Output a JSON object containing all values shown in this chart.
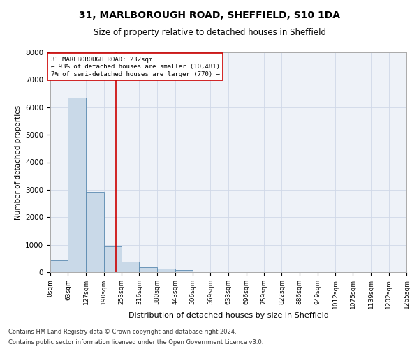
{
  "title1": "31, MARLBOROUGH ROAD, SHEFFIELD, S10 1DA",
  "title2": "Size of property relative to detached houses in Sheffield",
  "xlabel": "Distribution of detached houses by size in Sheffield",
  "ylabel": "Number of detached properties",
  "bar_edges": [
    0,
    63,
    127,
    190,
    253,
    316,
    380,
    443,
    506,
    569,
    633,
    696,
    759,
    822,
    886,
    949,
    1012,
    1075,
    1139,
    1202,
    1265
  ],
  "bar_heights": [
    430,
    6350,
    2920,
    950,
    390,
    175,
    120,
    70,
    0,
    0,
    0,
    0,
    0,
    0,
    0,
    0,
    0,
    0,
    0,
    0
  ],
  "bar_color": "#c9d9e8",
  "bar_edgecolor": "#5a8ab0",
  "property_line_x": 232,
  "property_line_color": "#cc0000",
  "ylim": [
    0,
    8000
  ],
  "yticks": [
    0,
    1000,
    2000,
    3000,
    4000,
    5000,
    6000,
    7000,
    8000
  ],
  "annotation_text": "31 MARLBOROUGH ROAD: 232sqm\n← 93% of detached houses are smaller (10,481)\n7% of semi-detached houses are larger (770) →",
  "grid_color": "#d0d8e8",
  "background_color": "#eef2f8",
  "footnote1": "Contains HM Land Registry data © Crown copyright and database right 2024.",
  "footnote2": "Contains public sector information licensed under the Open Government Licence v3.0.",
  "title1_fontsize": 10,
  "title2_fontsize": 8.5,
  "tick_label_fontsize": 6.5,
  "ylabel_fontsize": 7.5,
  "xlabel_fontsize": 8,
  "footnote_fontsize": 6
}
